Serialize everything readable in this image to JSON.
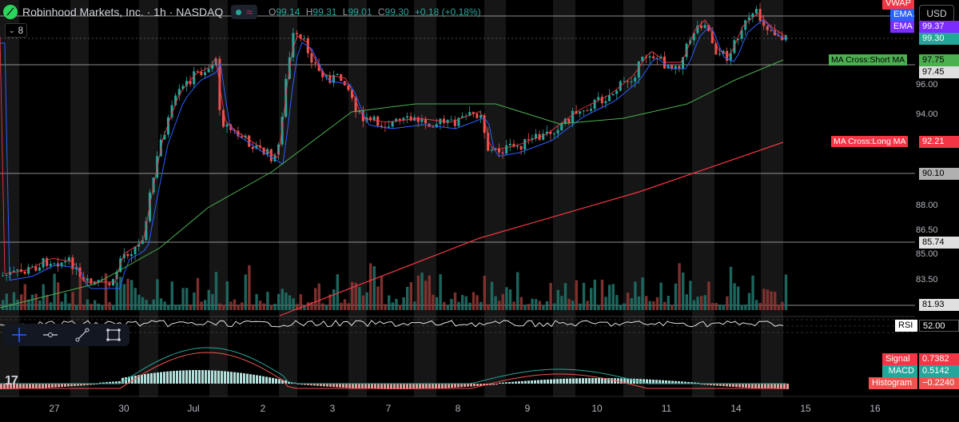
{
  "header": {
    "symbol": "Robinhood Markets, Inc. · 1h · NASDAQ",
    "o_label": "O",
    "o": "99.14",
    "h_label": "H",
    "h": "99.31",
    "l_label": "L",
    "l": "99.01",
    "c_label": "C",
    "c": "99.30",
    "change": "+0.18 (+0.18%)",
    "indicator_count": "8",
    "currency": "USD"
  },
  "price_axis": [
    "96.00",
    "94.00",
    "88.00",
    "86.50",
    "85.00",
    "83.50"
  ],
  "price_tags": {
    "vwap_label": "VWAP",
    "ema1_label": "EMA",
    "ema1": "99.37",
    "ema2_label": "EMA",
    "last": "99.30",
    "short_ma": "97.75",
    "level_9745": "97.45",
    "long_ma": "92.21",
    "level_9010": "90.10",
    "level_8574": "85.74",
    "level_8193": "81.93"
  },
  "line_labels": {
    "short_ma": "MA Cross:Short MA",
    "long_ma": "MA Cross:Long MA"
  },
  "rsi": {
    "label": "RSI",
    "value": "52.00"
  },
  "macd": {
    "signal_label": "Signal",
    "signal": "0.7382",
    "macd_label": "MACD",
    "macd": "0.5142",
    "hist_label": "Histogram",
    "hist": "−0.2240"
  },
  "x_axis": [
    "27",
    "30",
    "Jul",
    "2",
    "3",
    "7",
    "8",
    "9",
    "10",
    "11",
    "14",
    "15",
    "16"
  ],
  "colors": {
    "up": "#26a69a",
    "down": "#ef5350",
    "ema_blue": "#2962ff",
    "ema_red": "#f23645",
    "ma_green": "#4caf50",
    "ma_long": "#f23645",
    "vwap": "#f23645"
  },
  "toolbar": [
    "crosshair-icon",
    "horizontal-ray-icon",
    "trend-line-icon",
    "rectangle-icon"
  ]
}
